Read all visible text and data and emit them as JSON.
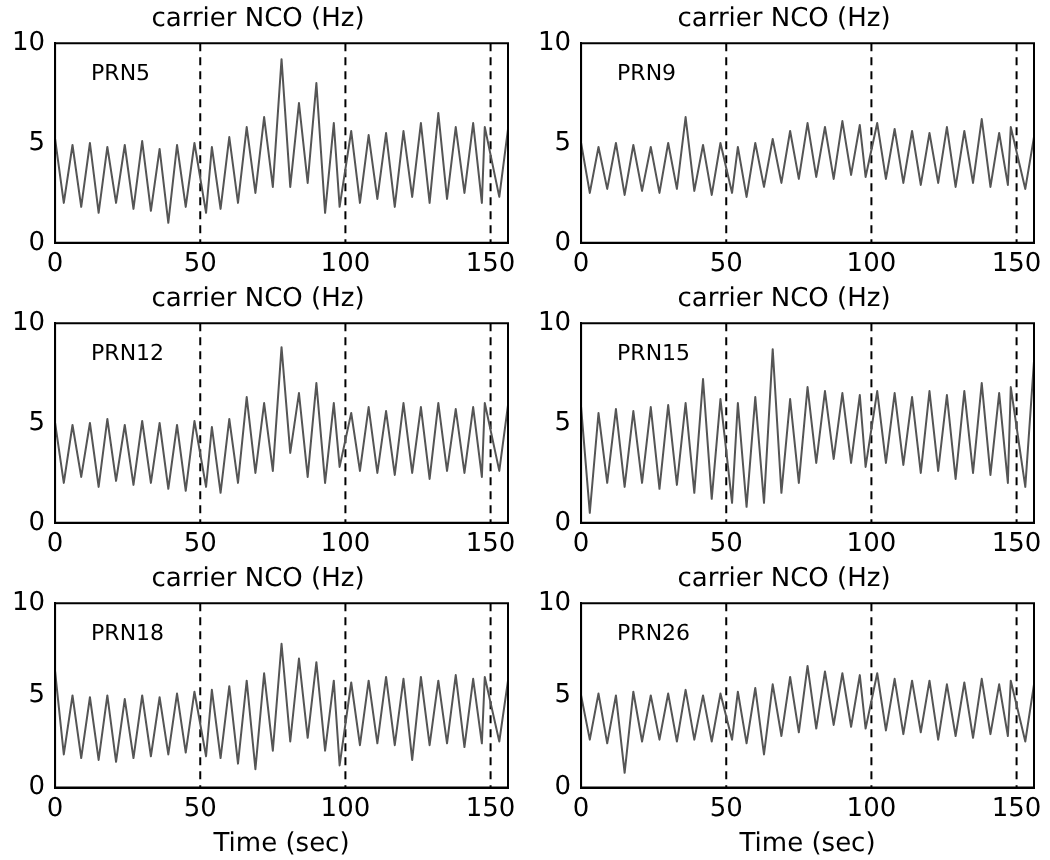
{
  "chart_data": [
    {
      "type": "line",
      "title": "carrier NCO (Hz)",
      "annotations": [
        "PRN5"
      ],
      "x": [
        0,
        3,
        6,
        9,
        12,
        15,
        18,
        21,
        24,
        27,
        30,
        33,
        36,
        39,
        42,
        45,
        48,
        52,
        54,
        57,
        60,
        63,
        66,
        69,
        72,
        75,
        78,
        81,
        84,
        87,
        90,
        93,
        96,
        98,
        102,
        105,
        108,
        111,
        114,
        117,
        120,
        123,
        126,
        129,
        132,
        135,
        138,
        141,
        144,
        147,
        148,
        153,
        156
      ],
      "series": [
        {
          "color": "#555555",
          "values": [
            5.2,
            2.0,
            4.9,
            1.8,
            5.0,
            1.5,
            4.8,
            2.0,
            4.9,
            1.7,
            5.1,
            1.6,
            4.7,
            1.0,
            4.9,
            1.8,
            5.0,
            1.5,
            4.8,
            1.7,
            5.3,
            2.0,
            5.8,
            2.5,
            6.3,
            2.8,
            9.2,
            2.8,
            7.0,
            3.0,
            8.0,
            1.5,
            6.0,
            1.8,
            5.6,
            2.0,
            5.4,
            2.2,
            5.5,
            1.8,
            5.6,
            2.3,
            6.0,
            2.0,
            6.5,
            2.2,
            5.8,
            2.5,
            6.0,
            2.0,
            5.8,
            2.3,
            5.7
          ]
        }
      ],
      "xlim": [
        0,
        156
      ],
      "xticks": [
        0,
        50,
        100,
        150
      ],
      "ylim": [
        0,
        10
      ],
      "yticks": [
        0,
        5,
        10
      ],
      "grid": false,
      "legend": false,
      "marker": "none",
      "line_style": "solid",
      "ref_lines": [
        {
          "axis": "x",
          "value": 50,
          "color": "#000000",
          "line_style": "dashed"
        },
        {
          "axis": "x",
          "value": 100,
          "color": "#000000",
          "line_style": "dashed"
        },
        {
          "axis": "x",
          "value": 150,
          "color": "#000000",
          "line_style": "dashed"
        }
      ]
    },
    {
      "type": "line",
      "title": "carrier NCO (Hz)",
      "annotations": [
        "PRN9"
      ],
      "x": [
        0,
        3,
        6,
        9,
        12,
        15,
        18,
        21,
        24,
        27,
        30,
        33,
        36,
        39,
        42,
        45,
        48,
        52,
        54,
        57,
        60,
        63,
        66,
        69,
        72,
        75,
        78,
        81,
        84,
        87,
        90,
        93,
        96,
        98,
        102,
        105,
        108,
        111,
        114,
        117,
        120,
        123,
        126,
        129,
        132,
        135,
        138,
        141,
        144,
        147,
        148,
        153,
        156
      ],
      "series": [
        {
          "color": "#555555",
          "values": [
            5.0,
            2.5,
            4.8,
            2.7,
            5.0,
            2.4,
            4.9,
            2.6,
            4.8,
            2.5,
            5.0,
            2.7,
            6.3,
            2.6,
            4.9,
            2.4,
            5.0,
            2.5,
            4.8,
            2.3,
            5.0,
            2.8,
            5.2,
            3.0,
            5.6,
            3.2,
            6.0,
            3.3,
            5.8,
            3.2,
            6.1,
            3.4,
            5.9,
            3.3,
            6.0,
            3.2,
            5.7,
            3.0,
            5.6,
            2.9,
            5.5,
            3.0,
            5.8,
            2.8,
            5.6,
            3.0,
            6.2,
            2.8,
            5.5,
            2.9,
            5.8,
            2.7,
            5.3
          ]
        }
      ],
      "xlim": [
        0,
        156
      ],
      "xticks": [
        0,
        50,
        100,
        150
      ],
      "ylim": [
        0,
        10
      ],
      "yticks": [
        0,
        5,
        10
      ],
      "grid": false,
      "legend": false,
      "marker": "none",
      "line_style": "solid",
      "ref_lines": [
        {
          "axis": "x",
          "value": 50,
          "color": "#000000",
          "line_style": "dashed"
        },
        {
          "axis": "x",
          "value": 100,
          "color": "#000000",
          "line_style": "dashed"
        },
        {
          "axis": "x",
          "value": 150,
          "color": "#000000",
          "line_style": "dashed"
        }
      ]
    },
    {
      "type": "line",
      "title": "carrier NCO (Hz)",
      "annotations": [
        "PRN12"
      ],
      "x": [
        0,
        3,
        6,
        9,
        12,
        15,
        18,
        21,
        24,
        27,
        30,
        33,
        36,
        39,
        42,
        45,
        48,
        52,
        54,
        57,
        60,
        63,
        66,
        69,
        72,
        75,
        78,
        81,
        84,
        87,
        90,
        93,
        96,
        98,
        102,
        105,
        108,
        111,
        114,
        117,
        120,
        123,
        126,
        129,
        132,
        135,
        138,
        141,
        144,
        147,
        148,
        153,
        156
      ],
      "series": [
        {
          "color": "#555555",
          "values": [
            5.0,
            2.0,
            4.9,
            2.3,
            5.0,
            1.8,
            5.2,
            2.1,
            4.9,
            1.9,
            5.1,
            2.0,
            5.0,
            1.7,
            4.9,
            1.6,
            5.1,
            1.8,
            4.8,
            1.5,
            5.2,
            2.0,
            6.3,
            2.5,
            6.0,
            2.6,
            8.8,
            3.5,
            6.5,
            2.3,
            7.0,
            2.0,
            6.0,
            2.8,
            5.5,
            2.6,
            5.8,
            2.5,
            5.6,
            2.4,
            6.0,
            2.5,
            5.8,
            2.2,
            6.0,
            2.6,
            5.7,
            2.5,
            5.8,
            2.3,
            6.0,
            2.6,
            5.9
          ]
        }
      ],
      "xlim": [
        0,
        156
      ],
      "xticks": [
        0,
        50,
        100,
        150
      ],
      "ylim": [
        0,
        10
      ],
      "yticks": [
        0,
        5,
        10
      ],
      "grid": false,
      "legend": false,
      "marker": "none",
      "line_style": "solid",
      "ref_lines": [
        {
          "axis": "x",
          "value": 50,
          "color": "#000000",
          "line_style": "dashed"
        },
        {
          "axis": "x",
          "value": 100,
          "color": "#000000",
          "line_style": "dashed"
        },
        {
          "axis": "x",
          "value": 150,
          "color": "#000000",
          "line_style": "dashed"
        }
      ]
    },
    {
      "type": "line",
      "title": "carrier NCO (Hz)",
      "annotations": [
        "PRN15"
      ],
      "x": [
        0,
        3,
        6,
        9,
        12,
        15,
        18,
        21,
        24,
        27,
        30,
        33,
        36,
        39,
        42,
        45,
        48,
        52,
        54,
        57,
        60,
        63,
        66,
        69,
        72,
        75,
        78,
        81,
        84,
        87,
        90,
        93,
        96,
        98,
        102,
        105,
        108,
        111,
        114,
        117,
        120,
        123,
        126,
        129,
        132,
        135,
        138,
        141,
        144,
        147,
        148,
        153,
        156
      ],
      "series": [
        {
          "color": "#555555",
          "values": [
            5.8,
            0.5,
            5.5,
            2.0,
            5.7,
            1.8,
            5.6,
            2.0,
            5.8,
            1.7,
            5.9,
            1.9,
            6.0,
            1.5,
            7.2,
            1.2,
            6.2,
            1.0,
            6.0,
            0.8,
            6.3,
            1.0,
            8.7,
            1.5,
            6.2,
            2.0,
            6.8,
            3.0,
            6.6,
            3.2,
            6.5,
            3.0,
            6.4,
            2.8,
            6.6,
            3.0,
            6.5,
            2.9,
            6.3,
            2.5,
            6.6,
            2.6,
            6.4,
            2.2,
            6.6,
            2.5,
            7.0,
            2.4,
            6.5,
            2.0,
            6.8,
            1.8,
            8.1
          ]
        }
      ],
      "xlim": [
        0,
        156
      ],
      "xticks": [
        0,
        50,
        100,
        150
      ],
      "ylim": [
        0,
        10
      ],
      "yticks": [
        0,
        5,
        10
      ],
      "grid": false,
      "legend": false,
      "marker": "none",
      "line_style": "solid",
      "ref_lines": [
        {
          "axis": "x",
          "value": 50,
          "color": "#000000",
          "line_style": "dashed"
        },
        {
          "axis": "x",
          "value": 100,
          "color": "#000000",
          "line_style": "dashed"
        },
        {
          "axis": "x",
          "value": 150,
          "color": "#000000",
          "line_style": "dashed"
        }
      ]
    },
    {
      "type": "line",
      "title": "carrier NCO (Hz)",
      "xlabel": "Time (sec)",
      "annotations": [
        "PRN18"
      ],
      "x": [
        0,
        3,
        6,
        9,
        12,
        15,
        18,
        21,
        24,
        27,
        30,
        33,
        36,
        39,
        42,
        45,
        48,
        52,
        54,
        57,
        60,
        63,
        66,
        69,
        72,
        75,
        78,
        81,
        84,
        87,
        90,
        93,
        96,
        98,
        102,
        105,
        108,
        111,
        114,
        117,
        120,
        123,
        126,
        129,
        132,
        135,
        138,
        141,
        144,
        147,
        148,
        153,
        156
      ],
      "series": [
        {
          "color": "#555555",
          "values": [
            6.3,
            1.8,
            5.0,
            1.6,
            4.9,
            1.5,
            5.0,
            1.4,
            4.8,
            1.6,
            5.0,
            1.7,
            4.9,
            1.8,
            5.1,
            1.9,
            5.2,
            1.7,
            5.3,
            1.6,
            5.5,
            1.3,
            5.8,
            1.0,
            6.2,
            2.0,
            7.8,
            2.5,
            7.0,
            2.7,
            6.8,
            2.0,
            5.8,
            1.2,
            5.7,
            2.3,
            5.8,
            2.4,
            6.0,
            2.3,
            5.9,
            1.5,
            6.0,
            2.3,
            5.8,
            2.4,
            6.1,
            2.2,
            5.9,
            2.4,
            6.0,
            2.5,
            5.8
          ]
        }
      ],
      "xlim": [
        0,
        156
      ],
      "xticks": [
        0,
        50,
        100,
        150
      ],
      "ylim": [
        0,
        10
      ],
      "yticks": [
        0,
        5,
        10
      ],
      "grid": false,
      "legend": false,
      "marker": "none",
      "line_style": "solid",
      "ref_lines": [
        {
          "axis": "x",
          "value": 50,
          "color": "#000000",
          "line_style": "dashed"
        },
        {
          "axis": "x",
          "value": 100,
          "color": "#000000",
          "line_style": "dashed"
        },
        {
          "axis": "x",
          "value": 150,
          "color": "#000000",
          "line_style": "dashed"
        }
      ]
    },
    {
      "type": "line",
      "title": "carrier NCO (Hz)",
      "xlabel": "Time (sec)",
      "annotations": [
        "PRN26"
      ],
      "x": [
        0,
        3,
        6,
        9,
        12,
        15,
        18,
        21,
        24,
        27,
        30,
        33,
        36,
        39,
        42,
        45,
        48,
        52,
        54,
        57,
        60,
        63,
        66,
        69,
        72,
        75,
        78,
        81,
        84,
        87,
        90,
        93,
        96,
        98,
        102,
        105,
        108,
        111,
        114,
        117,
        120,
        123,
        126,
        129,
        132,
        135,
        138,
        141,
        144,
        147,
        148,
        153,
        156
      ],
      "series": [
        {
          "color": "#555555",
          "values": [
            5.0,
            2.6,
            5.1,
            2.4,
            5.0,
            0.8,
            5.2,
            2.5,
            5.0,
            2.6,
            5.1,
            2.5,
            5.3,
            2.6,
            5.0,
            2.5,
            5.1,
            2.6,
            5.2,
            2.4,
            5.4,
            1.8,
            5.6,
            2.8,
            6.0,
            3.0,
            6.6,
            3.2,
            6.3,
            3.4,
            6.2,
            3.3,
            6.1,
            3.2,
            6.2,
            3.1,
            5.9,
            2.9,
            5.8,
            3.0,
            5.8,
            2.6,
            5.6,
            2.8,
            5.7,
            2.7,
            5.9,
            2.9,
            5.6,
            2.8,
            5.8,
            2.5,
            5.6
          ]
        }
      ],
      "xlim": [
        0,
        156
      ],
      "xticks": [
        0,
        50,
        100,
        150
      ],
      "ylim": [
        0,
        10
      ],
      "yticks": [
        0,
        5,
        10
      ],
      "grid": false,
      "legend": false,
      "marker": "none",
      "line_style": "solid",
      "ref_lines": [
        {
          "axis": "x",
          "value": 50,
          "color": "#000000",
          "line_style": "dashed"
        },
        {
          "axis": "x",
          "value": 100,
          "color": "#000000",
          "line_style": "dashed"
        },
        {
          "axis": "x",
          "value": 150,
          "color": "#000000",
          "line_style": "dashed"
        }
      ]
    }
  ]
}
